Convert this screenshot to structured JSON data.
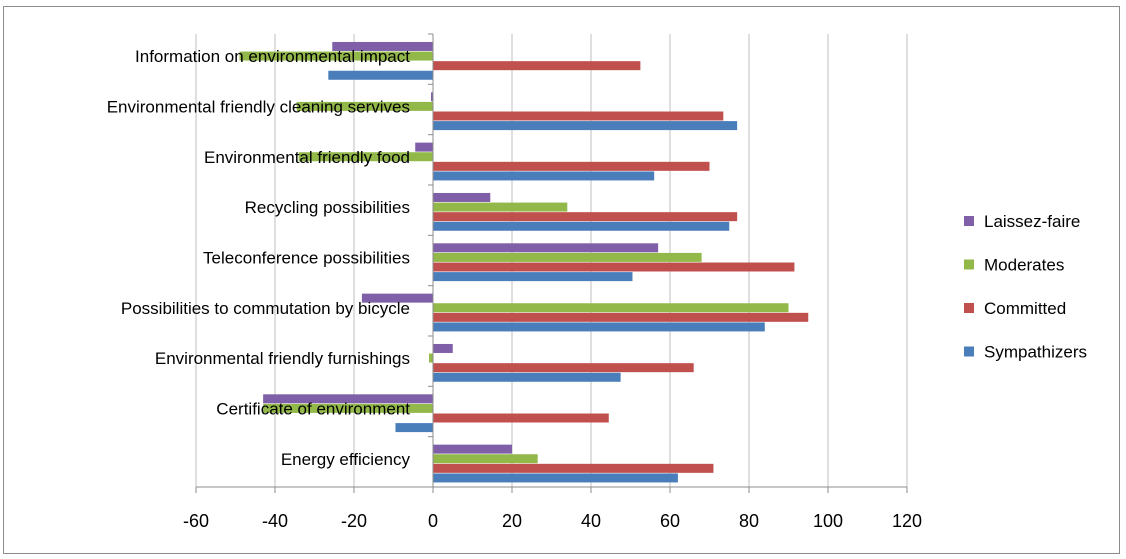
{
  "chart_data": {
    "type": "bar",
    "orientation": "horizontal",
    "categories": [
      "Information on environmental impact",
      "Environmental friendly cleaning servives",
      "Environmental friendly food",
      "Recycling possibilities",
      "Teleconference possibilities",
      "Possibilities to commutation by bicycle",
      "Environmental friendly furnishings",
      "Certificate of environment",
      "Energy efficiency"
    ],
    "series": [
      {
        "name": "Laissez-faire",
        "color": "#7f5fa8",
        "values": [
          -25.5,
          -0.5,
          -4.5,
          14.5,
          57,
          -18,
          5,
          -43,
          20
        ]
      },
      {
        "name": "Moderates",
        "color": "#93b84a",
        "values": [
          -49,
          -34.5,
          -34,
          34,
          68,
          90,
          -1,
          -43,
          26.5
        ]
      },
      {
        "name": "Committed",
        "color": "#c0504d",
        "values": [
          52.5,
          73.5,
          70,
          77,
          91.5,
          95,
          66,
          44.5,
          71
        ]
      },
      {
        "name": "Sympathizers",
        "color": "#4a7ebb",
        "values": [
          -26.5,
          77,
          56,
          75,
          50.5,
          84,
          47.5,
          -9.5,
          62
        ]
      }
    ],
    "xlim": [
      -60,
      120
    ],
    "xticks": [
      "-60",
      "-40",
      "-20",
      "0",
      "20",
      "40",
      "60",
      "80",
      "100",
      "120"
    ],
    "grid": true,
    "legend_position": "right",
    "title": "",
    "xlabel": "",
    "ylabel": ""
  }
}
